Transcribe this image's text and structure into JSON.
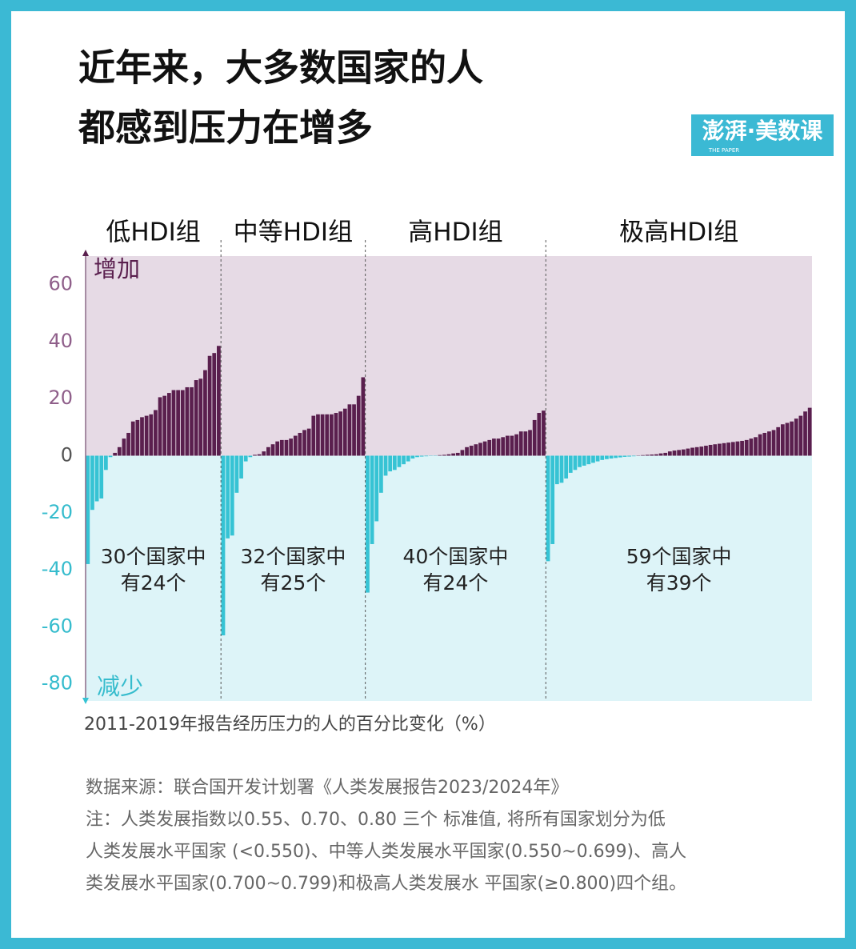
{
  "chart_data": {
    "type": "bar",
    "title": [
      "近年来，大多数国家的人",
      "都感到压力在增多"
    ],
    "logo": "澎湃·美数课",
    "logo_sub": "THE PAPER",
    "up_label": "增加",
    "down_label": "减少",
    "x_label": "2011-2019年报告经历压力的人的百分比变化（%）",
    "source": "数据来源：联合国开发计划署《人类发展报告2023/2024年》",
    "notes": [
      "注：人类发展指数以0.55、0.70、0.80 三个 标准值, 将所有国家划分为低",
      "人类发展水平国家 (<0.550)、中等人类发展水平国家(0.550~0.699)、高人",
      "类发展水平国家(0.700~0.799)和极高人类发展水 平国家(≥0.800)四个组。"
    ],
    "pos_color": "#5a1f4e",
    "neg_color": "#36c3d4",
    "pos_bg": "#e6dae5",
    "neg_bg": "#ddf4f8",
    "ylim": [
      -86,
      70
    ],
    "yticks": [
      -80,
      -60,
      -40,
      -20,
      0,
      20,
      40,
      60
    ],
    "groups": [
      {
        "name": "低HDI组",
        "annotation": [
          "30个国家中",
          "有24个"
        ],
        "values": [
          -38,
          -19,
          -16,
          -15,
          -5,
          -0.5,
          1,
          3,
          6,
          8,
          12,
          12.5,
          13.5,
          14,
          14.5,
          16,
          20.5,
          21,
          22,
          23,
          23,
          23,
          24,
          24,
          26.5,
          27,
          30,
          35,
          36,
          38.5
        ]
      },
      {
        "name": "中等HDI组",
        "annotation": [
          "32个国家中",
          "有25个"
        ],
        "values": [
          -63,
          -29,
          -28,
          -13,
          -8,
          -2,
          -0.5,
          0.3,
          0.5,
          1.5,
          3,
          4,
          5,
          5.5,
          5.5,
          6,
          7,
          8,
          9,
          9.5,
          14,
          14.5,
          14.5,
          14.5,
          14.5,
          15,
          15.5,
          16.5,
          18,
          18,
          21,
          27.5
        ]
      },
      {
        "name": "高HDI组",
        "annotation": [
          "40个国家中",
          "有24个"
        ],
        "values": [
          -48,
          -31,
          -23,
          -13,
          -7,
          -5.5,
          -5,
          -4,
          -3,
          -2,
          -1,
          -0.5,
          -0.3,
          -0.2,
          -0.1,
          -0.1,
          0.2,
          0.3,
          0.5,
          0.8,
          1,
          2,
          3,
          3.5,
          4,
          4.5,
          5,
          5.5,
          6,
          6,
          6.5,
          7,
          7,
          7.5,
          8.5,
          8.5,
          9,
          12.5,
          15,
          15.8
        ]
      },
      {
        "name": "极高HDI组",
        "annotation": [
          "59个国家中",
          "有39个"
        ],
        "values": [
          -37,
          -31,
          -10,
          -9.5,
          -8,
          -6,
          -5,
          -4,
          -3.5,
          -3,
          -2.5,
          -2,
          -1.5,
          -1.2,
          -1,
          -0.8,
          -0.6,
          -0.4,
          -0.3,
          -0.2,
          0.1,
          0.2,
          0.3,
          0.4,
          0.5,
          0.8,
          1,
          1.5,
          1.8,
          2,
          2.2,
          2.5,
          2.8,
          3,
          3.2,
          3.5,
          3.8,
          4,
          4.2,
          4.4,
          4.6,
          4.8,
          5,
          5.2,
          5.5,
          6,
          6.5,
          7.5,
          8,
          8.5,
          9,
          10,
          11,
          11.5,
          12,
          13,
          14,
          15.5,
          16.8
        ]
      }
    ]
  }
}
